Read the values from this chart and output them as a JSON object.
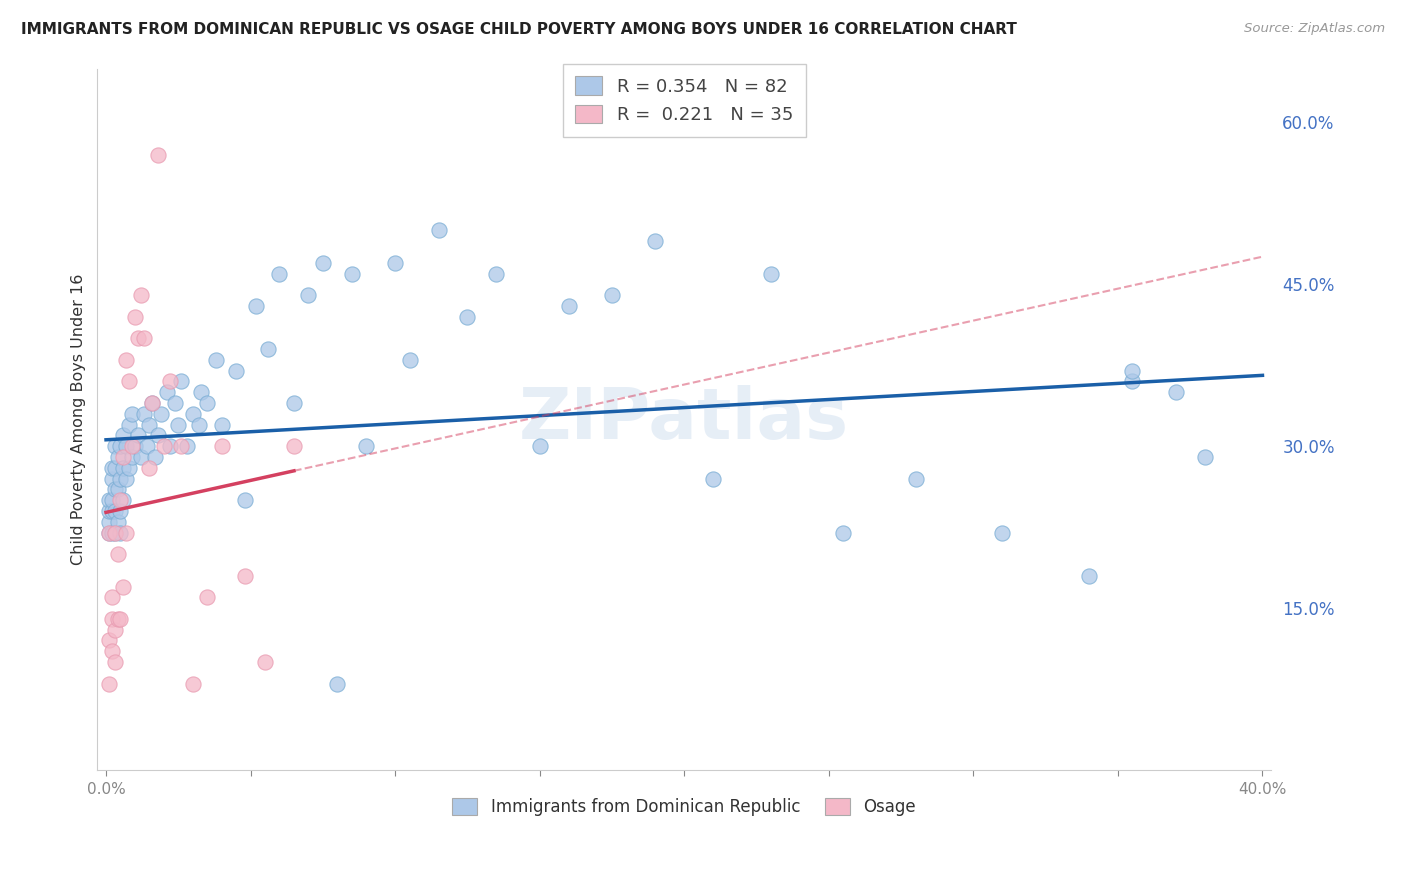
{
  "title": "IMMIGRANTS FROM DOMINICAN REPUBLIC VS OSAGE CHILD POVERTY AMONG BOYS UNDER 16 CORRELATION CHART",
  "source": "Source: ZipAtlas.com",
  "ylabel": "Child Poverty Among Boys Under 16",
  "xlim": [
    0.0,
    0.4
  ],
  "ylim": [
    0.0,
    0.65
  ],
  "blue_R": 0.354,
  "blue_N": 82,
  "pink_R": 0.221,
  "pink_N": 35,
  "blue_color": "#adc8e8",
  "blue_edge_color": "#7aadd4",
  "pink_color": "#f4b8c8",
  "pink_edge_color": "#e89ab0",
  "blue_line_color": "#1a5fa8",
  "pink_line_color": "#d44060",
  "watermark": "ZIPatlas",
  "legend_label_blue": "R = 0.354   N = 82",
  "legend_label_pink": "R =  0.221   N = 35",
  "bottom_label_blue": "Immigrants from Dominican Republic",
  "bottom_label_pink": "Osage",
  "blue_scatter_x": [
    0.001,
    0.001,
    0.001,
    0.001,
    0.002,
    0.002,
    0.002,
    0.002,
    0.002,
    0.003,
    0.003,
    0.003,
    0.003,
    0.003,
    0.004,
    0.004,
    0.004,
    0.005,
    0.005,
    0.005,
    0.005,
    0.006,
    0.006,
    0.006,
    0.007,
    0.007,
    0.008,
    0.008,
    0.009,
    0.009,
    0.01,
    0.011,
    0.012,
    0.013,
    0.014,
    0.015,
    0.016,
    0.017,
    0.018,
    0.019,
    0.021,
    0.022,
    0.024,
    0.025,
    0.026,
    0.028,
    0.03,
    0.032,
    0.033,
    0.035,
    0.038,
    0.04,
    0.045,
    0.048,
    0.052,
    0.056,
    0.06,
    0.065,
    0.07,
    0.075,
    0.08,
    0.085,
    0.09,
    0.1,
    0.105,
    0.115,
    0.125,
    0.135,
    0.15,
    0.16,
    0.175,
    0.19,
    0.21,
    0.23,
    0.255,
    0.28,
    0.31,
    0.34,
    0.355,
    0.38,
    0.355,
    0.37
  ],
  "blue_scatter_y": [
    0.22,
    0.23,
    0.24,
    0.25,
    0.22,
    0.24,
    0.25,
    0.27,
    0.28,
    0.22,
    0.24,
    0.26,
    0.28,
    0.3,
    0.23,
    0.26,
    0.29,
    0.24,
    0.27,
    0.3,
    0.22,
    0.25,
    0.28,
    0.31,
    0.27,
    0.3,
    0.28,
    0.32,
    0.29,
    0.33,
    0.3,
    0.31,
    0.29,
    0.33,
    0.3,
    0.32,
    0.34,
    0.29,
    0.31,
    0.33,
    0.35,
    0.3,
    0.34,
    0.32,
    0.36,
    0.3,
    0.33,
    0.32,
    0.35,
    0.34,
    0.38,
    0.32,
    0.37,
    0.25,
    0.43,
    0.39,
    0.46,
    0.34,
    0.44,
    0.47,
    0.08,
    0.46,
    0.3,
    0.47,
    0.38,
    0.5,
    0.42,
    0.46,
    0.3,
    0.43,
    0.44,
    0.49,
    0.27,
    0.46,
    0.22,
    0.27,
    0.22,
    0.18,
    0.36,
    0.29,
    0.37,
    0.35
  ],
  "pink_scatter_x": [
    0.001,
    0.001,
    0.001,
    0.002,
    0.002,
    0.002,
    0.003,
    0.003,
    0.003,
    0.004,
    0.004,
    0.005,
    0.005,
    0.006,
    0.006,
    0.007,
    0.007,
    0.008,
    0.009,
    0.01,
    0.011,
    0.012,
    0.013,
    0.015,
    0.016,
    0.018,
    0.02,
    0.022,
    0.026,
    0.03,
    0.035,
    0.04,
    0.048,
    0.055,
    0.065
  ],
  "pink_scatter_y": [
    0.22,
    0.12,
    0.08,
    0.11,
    0.14,
    0.16,
    0.1,
    0.13,
    0.22,
    0.14,
    0.2,
    0.14,
    0.25,
    0.17,
    0.29,
    0.22,
    0.38,
    0.36,
    0.3,
    0.42,
    0.4,
    0.44,
    0.4,
    0.28,
    0.34,
    0.57,
    0.3,
    0.36,
    0.3,
    0.08,
    0.16,
    0.3,
    0.18,
    0.1,
    0.3
  ]
}
